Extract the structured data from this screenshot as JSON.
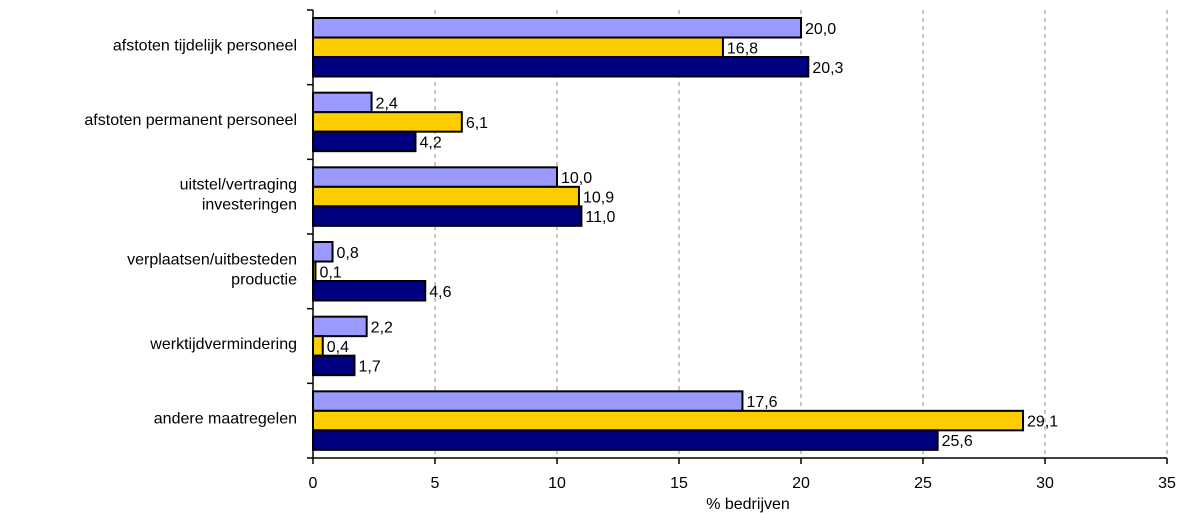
{
  "chart_data": {
    "type": "bar",
    "orientation": "horizontal",
    "xlabel": "% bedrijven",
    "xlim": [
      0,
      35
    ],
    "xticks": [
      0,
      5,
      10,
      15,
      20,
      25,
      30,
      35
    ],
    "grid": "vertical dashed",
    "legend": "none",
    "categories": [
      [
        "afstoten tijdelijk personeel"
      ],
      [
        "afstoten permanent personeel"
      ],
      [
        "uitstel/vertraging",
        "investeringen"
      ],
      [
        "verplaatsen/uitbesteden",
        "productie"
      ],
      [
        "werktijdvermindering"
      ],
      [
        "andere maatregelen"
      ]
    ],
    "series": [
      {
        "values": [
          20.0,
          2.4,
          10.0,
          0.8,
          2.2,
          17.6
        ],
        "labels": [
          "20,0",
          "2,4",
          "10,0",
          "0,8",
          "2,2",
          "17,6"
        ],
        "color": "#9999ff"
      },
      {
        "values": [
          16.8,
          6.1,
          10.9,
          0.1,
          0.4,
          29.1
        ],
        "labels": [
          "16,8",
          "6,1",
          "10,9",
          "0,1",
          "0,4",
          "29,1"
        ],
        "color": "#ffcc00"
      },
      {
        "values": [
          20.3,
          4.2,
          11.0,
          4.6,
          1.7,
          25.6
        ],
        "labels": [
          "20,3",
          "4,2",
          "11,0",
          "4,6",
          "1,7",
          "25,6"
        ],
        "color": "#000080"
      }
    ]
  }
}
